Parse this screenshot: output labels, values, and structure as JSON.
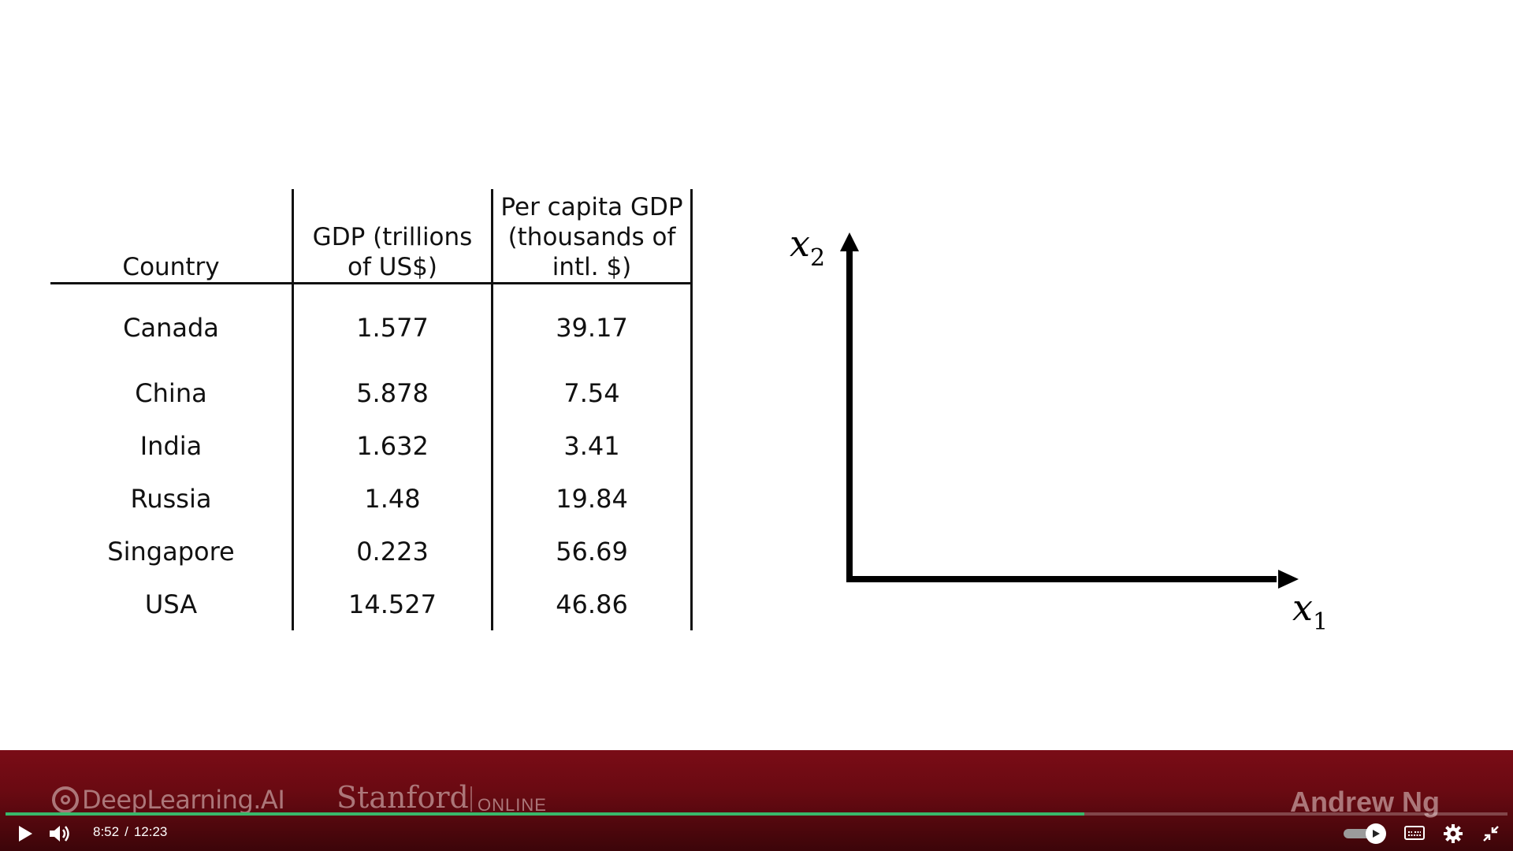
{
  "table": {
    "headers": {
      "country": "Country",
      "gdp_line1": "GDP (trillions",
      "gdp_line2": "of US$)",
      "pc_line1": "Per capita GDP",
      "pc_line2": "(thousands of",
      "pc_line3": "intl. $)"
    },
    "rows": [
      {
        "country": "Canada",
        "gdp": "1.577",
        "per_capita": "39.17"
      },
      {
        "country": "China",
        "gdp": "5.878",
        "per_capita": "7.54"
      },
      {
        "country": "India",
        "gdp": "1.632",
        "per_capita": "3.41"
      },
      {
        "country": "Russia",
        "gdp": "1.48",
        "per_capita": "19.84"
      },
      {
        "country": "Singapore",
        "gdp": "0.223",
        "per_capita": "56.69"
      },
      {
        "country": "USA",
        "gdp": "14.527",
        "per_capita": "46.86"
      }
    ]
  },
  "axes": {
    "y_var": "x",
    "y_sub": "2",
    "x_var": "x",
    "x_sub": "1"
  },
  "banner": {
    "deeplearning": "DeepLearning.AI",
    "stanford": "Stanford",
    "online": "ONLINE",
    "instructor": "Andrew Ng"
  },
  "player": {
    "current_time": "8:52",
    "separator": "/",
    "duration": "12:23",
    "progress_fraction": 0.718,
    "autoplay_on": true,
    "progress_color": "#39b86a",
    "icons": [
      "play-icon",
      "volume-icon",
      "autoplay-toggle",
      "captions-icon",
      "settings-icon",
      "exit-fullscreen-icon"
    ]
  }
}
